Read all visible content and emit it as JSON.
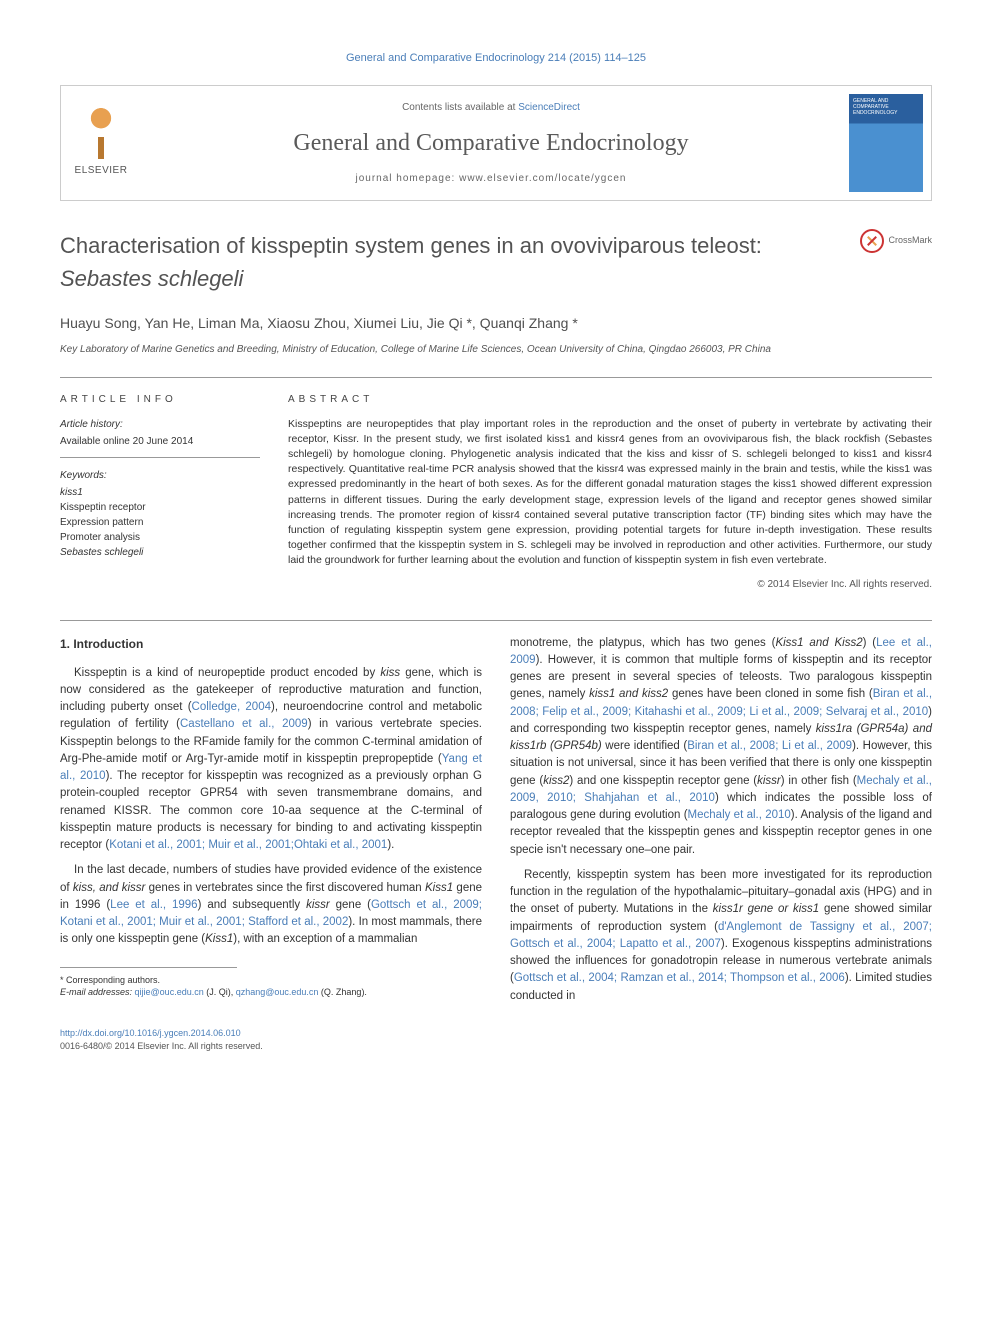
{
  "citation": "General and Comparative Endocrinology 214 (2015) 114–125",
  "header": {
    "elsevier_label": "ELSEVIER",
    "contents_prefix": "Contents lists available at ",
    "contents_link": "ScienceDirect",
    "journal_name": "General and Comparative Endocrinology",
    "homepage": "journal homepage: www.elsevier.com/locate/ygcen",
    "cover_text": "GENERAL AND COMPARATIVE ENDOCRINOLOGY"
  },
  "article": {
    "title_line1": "Characterisation of kisspeptin system genes in an ovoviviparous teleost:",
    "title_species": "Sebastes schlegeli",
    "crossmark_label": "CrossMark",
    "authors": "Huayu Song, Yan He, Liman Ma, Xiaosu Zhou, Xiumei Liu, Jie Qi *, Quanqi Zhang *",
    "affiliation": "Key Laboratory of Marine Genetics and Breeding, Ministry of Education, College of Marine Life Sciences, Ocean University of China, Qingdao 266003, PR China"
  },
  "info": {
    "section_label": "ARTICLE INFO",
    "history_head": "Article history:",
    "history": "Available online 20 June 2014",
    "keywords_head": "Keywords:",
    "keywords": [
      "kiss1",
      "Kisspeptin receptor",
      "Expression pattern",
      "Promoter analysis",
      "Sebastes schlegeli"
    ]
  },
  "abstract": {
    "section_label": "ABSTRACT",
    "text": "Kisspeptins are neuropeptides that play important roles in the reproduction and the onset of puberty in vertebrate by activating their receptor, Kissr. In the present study, we first isolated kiss1 and kissr4 genes from an ovoviviparous fish, the black rockfish (Sebastes schlegeli) by homologue cloning. Phylogenetic analysis indicated that the kiss and kissr of S. schlegeli belonged to kiss1 and kissr4 respectively. Quantitative real-time PCR analysis showed that the kissr4 was expressed mainly in the brain and testis, while the kiss1 was expressed predominantly in the heart of both sexes. As for the different gonadal maturation stages the kiss1 showed different expression patterns in different tissues. During the early development stage, expression levels of the ligand and receptor genes showed similar increasing trends. The promoter region of kissr4 contained several putative transcription factor (TF) binding sites which may have the function of regulating kisspeptin system gene expression, providing potential targets for future in-depth investigation. These results together confirmed that the kisspeptin system in S. schlegeli may be involved in reproduction and other activities. Furthermore, our study laid the groundwork for further learning about the evolution and function of kisspeptin system in fish even vertebrate.",
    "copyright": "© 2014 Elsevier Inc. All rights reserved."
  },
  "body": {
    "section_head": "1. Introduction",
    "col1_p1_a": "Kisspeptin is a kind of neuropeptide product encoded by ",
    "col1_p1_b": " gene, which is now considered as the gatekeeper of reproductive maturation and function, including puberty onset (",
    "col1_p1_c": "), neuroendocrine control and metabolic regulation of fertility (",
    "col1_p1_d": ") in various vertebrate species. Kisspeptin belongs to the RFamide family for the common C-terminal amidation of Arg-Phe-amide motif or Arg-Tyr-amide motif in kisspeptin prepropeptide (",
    "col1_p1_e": "). The receptor for kisspeptin was recognized as a previously orphan G protein-coupled receptor GPR54 with seven transmembrane domains, and renamed KISSR. The common core 10-aa sequence at the C-terminal of kisspeptin mature products is necessary for binding to and activating kisspeptin receptor (",
    "col1_p1_f": ").",
    "col1_p2_a": "In the last decade, numbers of studies have provided evidence of the existence of ",
    "col1_p2_b": " genes in vertebrates since the first discovered human ",
    "col1_p2_c": " gene in 1996 (",
    "col1_p2_d": ") and subsequently ",
    "col1_p2_e": " gene (",
    "col1_p2_f": "). In most mammals, there is only one kisspeptin gene (",
    "col1_p2_g": "), with an exception of a mammalian",
    "col2_p1_a": "monotreme, the platypus, which has two genes (",
    "col2_p1_b": ") (",
    "col2_p1_c": "). However, it is common that multiple forms of kisspeptin and its receptor genes are present in several species of teleosts. Two paralogous kisspeptin genes, namely ",
    "col2_p1_d": " genes have been cloned in some fish (",
    "col2_p1_e": ") and corresponding two kisspeptin receptor genes, namely ",
    "col2_p1_f": " were identified (",
    "col2_p1_g": "). However, this situation is not universal, since it has been verified that there is only one kisspeptin gene (",
    "col2_p1_h": ") and one kisspeptin receptor gene (",
    "col2_p1_i": ") in other fish (",
    "col2_p1_j": ") which indicates the possible loss of paralogous gene during evolution (",
    "col2_p1_k": "). Analysis of the ligand and receptor revealed that the kisspeptin genes and kisspeptin receptor genes in one specie isn't necessary one–one pair.",
    "col2_p2_a": "Recently, kisspeptin system has been more investigated for its reproduction function in the regulation of the hypothalamic–pituitary–gonadal axis (HPG) and in the onset of puberty. Mutations in the ",
    "col2_p2_b": " gene showed similar impairments of reproduction system (",
    "col2_p2_c": "). Exogenous kisspeptins administrations showed the influences for gonadotropin release in numerous vertebrate animals (",
    "col2_p2_d": "). Limited studies conducted in"
  },
  "refs": {
    "colledge": "Colledge, 2004",
    "castellano": "Castellano et al., 2009",
    "yang": "Yang et al., 2010",
    "kotani_multi": "Kotani et al., 2001; Muir et al., 2001;Ohtaki et al., 2001",
    "lee1996": "Lee et al., 1996",
    "gottsch_multi": "Gottsch et al., 2009; Kotani et al., 2001; Muir et al., 2001; Stafford et al., 2002",
    "lee2009": "Lee et al., 2009",
    "biran_multi": "Biran et al., 2008; Felip et al., 2009; Kitahashi et al., 2009; Li et al., 2009; Selvaraj et al., 2010",
    "biran_li": "Biran et al., 2008; Li et al., 2009",
    "mechaly_multi": "Mechaly et al., 2009, 2010; Shahjahan et al., 2010",
    "mechaly": "Mechaly et al., 2010",
    "dang_multi": "d'Anglemont de Tassigny et al., 2007; Gottsch et al., 2004; Lapatto et al., 2007",
    "gottsch_ramzan": "Gottsch et al., 2004; Ramzan et al., 2014; Thompson et al., 2006"
  },
  "genes": {
    "kiss": "kiss",
    "kiss_and_kissr": "kiss, and kissr",
    "Kiss1": "Kiss1",
    "kissr": "kissr",
    "Kiss1_Kiss2": "Kiss1 and Kiss2",
    "kiss1_kiss2": "kiss1 and kiss2",
    "kiss1ra_b": "kiss1ra (GPR54a) and kiss1rb (GPR54b)",
    "kiss2": "kiss2",
    "kissr_only": "kissr",
    "kiss1r_or_kiss1": "kiss1r gene or kiss1"
  },
  "corresponding": {
    "star": "* Corresponding authors.",
    "email_label": "E-mail addresses: ",
    "email1": "qijie@ouc.edu.cn",
    "name1": " (J. Qi), ",
    "email2": "qzhang@ouc.edu.cn",
    "name2": " (Q. Zhang)."
  },
  "footer": {
    "doi": "http://dx.doi.org/10.1016/j.ygcen.2014.06.010",
    "issn": "0016-6480/© 2014 Elsevier Inc. All rights reserved."
  },
  "colors": {
    "link": "#4a7eb8",
    "text": "#333333",
    "rule": "#999999"
  }
}
